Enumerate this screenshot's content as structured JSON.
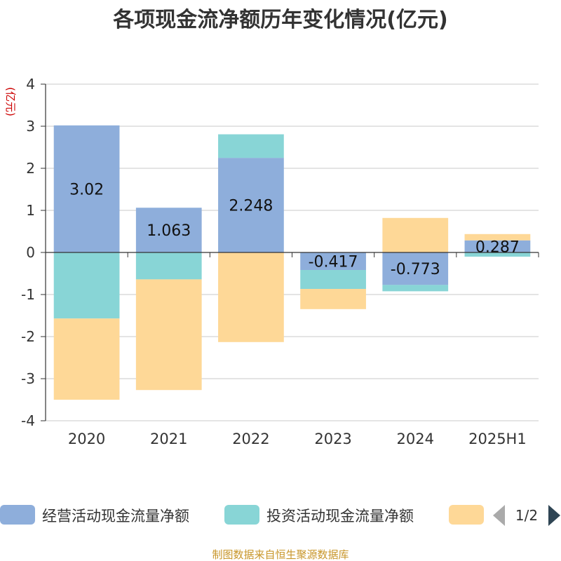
{
  "chart_data": {
    "type": "bar",
    "stacked": true,
    "title": "各项现金流净额历年变化情况(亿元)",
    "ylabel": "(亿元)",
    "xlabel": "",
    "categories": [
      "2020",
      "2021",
      "2022",
      "2023",
      "2024",
      "2025H1"
    ],
    "ylim": [
      -4,
      4
    ],
    "yticks": [
      -4,
      -3,
      -2,
      -1,
      0,
      1,
      2,
      3,
      4
    ],
    "grid": true,
    "legend_position": "bottom",
    "series": [
      {
        "name": "经营活动现金流量净额",
        "color": "#8eaedb",
        "values": [
          3.02,
          1.063,
          2.248,
          -0.417,
          -0.773,
          0.287
        ]
      },
      {
        "name": "投资活动现金流量净额",
        "color": "#88d5d6",
        "values": [
          -1.57,
          -0.64,
          0.56,
          -0.45,
          -0.15,
          -0.1
        ]
      },
      {
        "name": "",
        "color": "#fed897",
        "values": [
          -1.93,
          -2.63,
          -2.13,
          -0.48,
          0.82,
          0.15
        ]
      }
    ],
    "data_labels": [
      "3.02",
      "1.063",
      "2.248",
      "-0.417",
      "-0.773",
      "0.287"
    ]
  },
  "legend": {
    "page": "1/2"
  },
  "source_note": "制图数据来自恒生聚源数据库"
}
